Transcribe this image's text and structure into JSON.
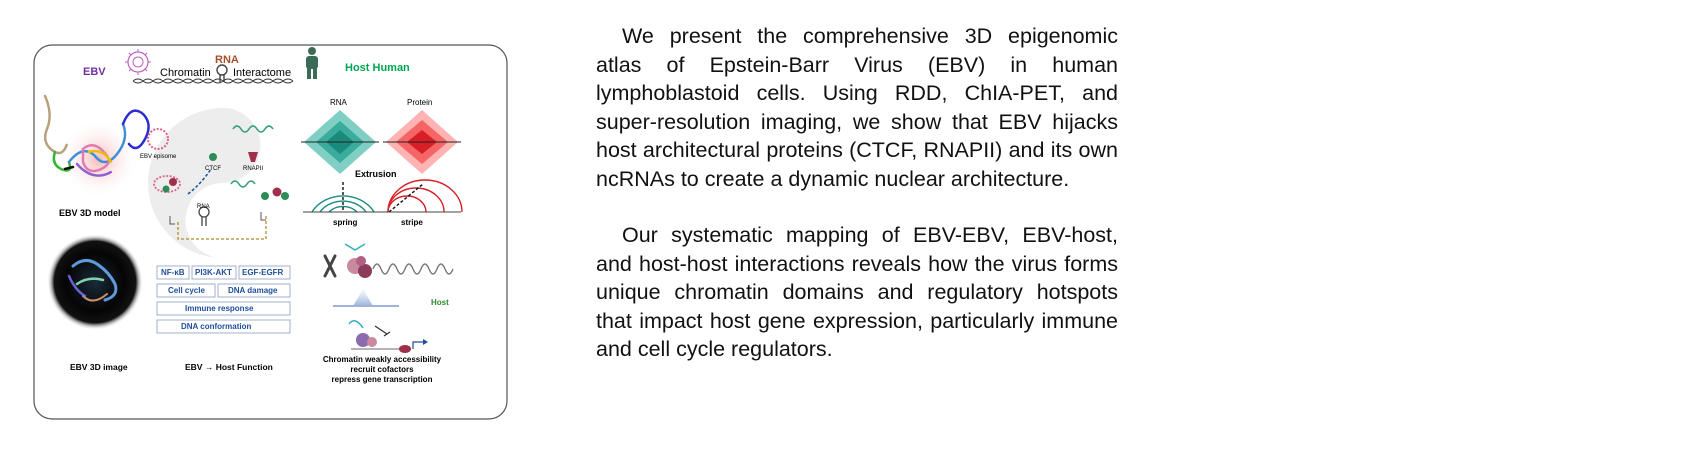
{
  "figure": {
    "labels": {
      "ebv": "EBV",
      "rna_top": "RNA",
      "chromatin": "Chromatin",
      "interactome": "Interactome",
      "host_human": "Host Human",
      "ebv_3d_model": "EBV 3D model",
      "ebv_episome": "EBV episome",
      "ctcf": "CTCF",
      "rnapii": "RNAPII",
      "rna_center": "RNA",
      "rna_map": "RNA",
      "protein_map": "Protein",
      "extrusion": "Extrusion",
      "spring": "spring",
      "stripe": "stripe",
      "ebv_3d_image": "EBV 3D image",
      "ebv_host_function": "EBV → Host Function",
      "host_small": "Host",
      "caption_line1": "Chromatin weakly accessibility",
      "caption_line2": "recruit cofactors",
      "caption_line3": "repress gene transcription"
    },
    "pathways": {
      "row1": [
        "NF-κB",
        "PI3K-AKT",
        "EGF-EGFR"
      ],
      "row2": [
        "Cell cycle",
        "DNA damage"
      ],
      "row3": "Immune response",
      "row4": "DNA conformation"
    },
    "colors": {
      "ebv_purple": "#7030a0",
      "rna_brown": "#a0522d",
      "host_green": "#00a550",
      "teal": "#1a9a8c",
      "red": "#e8222a",
      "pathway_blue": "#1f4e9c"
    }
  },
  "abstract": {
    "paragraph1": "We present the comprehensive 3D epigenomic atlas of Epstein-Barr Virus (EBV) in human lymphoblastoid cells. Using RDD, ChIA-PET, and super-resolution imaging, we show that EBV hijacks host architectural proteins (CTCF, RNAPII) and its own ncRNAs to create a dynamic nuclear architecture.",
    "paragraph2": "Our systematic mapping of EBV-EBV, EBV-host, and host-host interactions reveals how the virus forms unique chromatin domains and regulatory hotspots that impact host gene expression, particularly immune and cell cycle regulators."
  }
}
